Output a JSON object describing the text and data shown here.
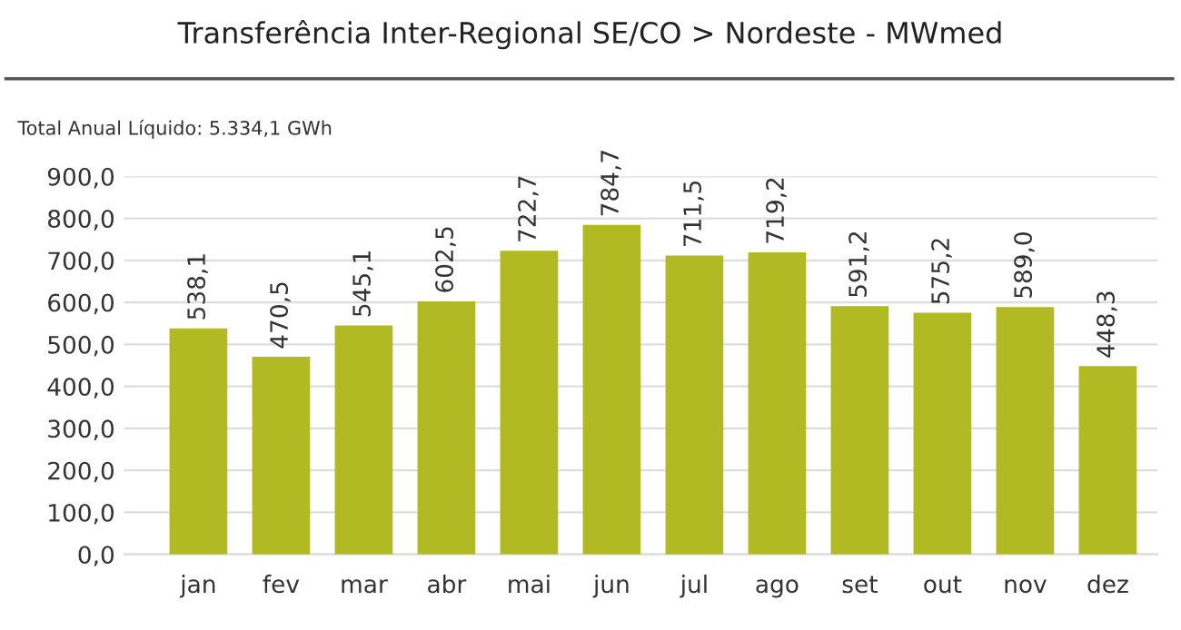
{
  "chart_data": {
    "type": "bar",
    "title": "Transferência Inter-Regional SE/CO > Nordeste - MWmed",
    "subtitle": "Total Anual Líquido: 5.334,1 GWh",
    "categories": [
      "jan",
      "fev",
      "mar",
      "abr",
      "mai",
      "jun",
      "jul",
      "ago",
      "set",
      "out",
      "nov",
      "dez"
    ],
    "values": [
      538.1,
      470.5,
      545.1,
      602.5,
      722.7,
      784.7,
      711.5,
      719.2,
      591.2,
      575.2,
      589.0,
      448.3
    ],
    "value_labels": [
      "538,1",
      "470,5",
      "545,1",
      "602,5",
      "722,7",
      "784,7",
      "711,5",
      "719,2",
      "591,2",
      "575,2",
      "589,0",
      "448,3"
    ],
    "color": "#b1b923",
    "ylim": [
      0,
      900
    ],
    "yticks": [
      {
        "value": 0,
        "label": "0,0"
      },
      {
        "value": 100,
        "label": "100,0"
      },
      {
        "value": 200,
        "label": "200,0"
      },
      {
        "value": 300,
        "label": "300,0"
      },
      {
        "value": 400,
        "label": "400,0"
      },
      {
        "value": 500,
        "label": "500,0"
      },
      {
        "value": 600,
        "label": "600,0"
      },
      {
        "value": 700,
        "label": "700,0"
      },
      {
        "value": 800,
        "label": "800,0"
      },
      {
        "value": 900,
        "label": "900,0"
      }
    ],
    "grid": "y",
    "legend": false
  }
}
